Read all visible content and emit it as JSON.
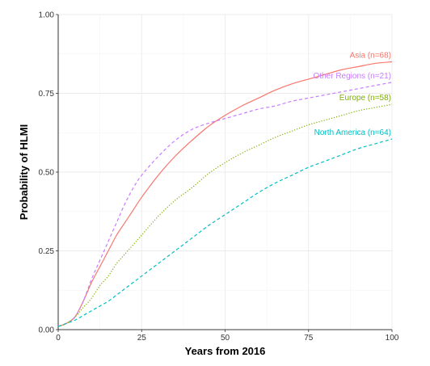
{
  "chart_data": {
    "type": "line",
    "title": "",
    "xlabel": "Years from 2016",
    "ylabel": "Probability of HLMI",
    "xlim": [
      0,
      100
    ],
    "ylim": [
      0,
      1
    ],
    "x_ticks": [
      "0",
      "25",
      "50",
      "75",
      "100"
    ],
    "y_ticks": [
      "0.00",
      "0.25",
      "0.50",
      "0.75",
      "1.00"
    ],
    "grid": true,
    "legend": "direct labels at line ends",
    "series": [
      {
        "name": "Asia (n=68)",
        "color": "#f8766d",
        "dash": "solid",
        "x": [
          0,
          2.5,
          5,
          7.5,
          10,
          12.5,
          15,
          17.5,
          20,
          22.5,
          25,
          30,
          35,
          40,
          45,
          50,
          55,
          60,
          65,
          70,
          75,
          80,
          85,
          90,
          95,
          100
        ],
        "y": [
          0.01,
          0.02,
          0.04,
          0.09,
          0.15,
          0.2,
          0.25,
          0.3,
          0.34,
          0.38,
          0.42,
          0.49,
          0.55,
          0.6,
          0.645,
          0.68,
          0.71,
          0.735,
          0.76,
          0.78,
          0.795,
          0.81,
          0.825,
          0.835,
          0.845,
          0.85
        ]
      },
      {
        "name": "Other Regions (n=21)",
        "color": "#c77cff",
        "dash": "dashed",
        "x": [
          0,
          2.5,
          5,
          7.5,
          10,
          12.5,
          15,
          17.5,
          20,
          22.5,
          25,
          30,
          35,
          40,
          45,
          50,
          55,
          60,
          65,
          70,
          75,
          80,
          85,
          90,
          95,
          100
        ],
        "y": [
          0.01,
          0.02,
          0.04,
          0.09,
          0.16,
          0.22,
          0.28,
          0.34,
          0.4,
          0.45,
          0.49,
          0.55,
          0.6,
          0.635,
          0.655,
          0.67,
          0.685,
          0.7,
          0.71,
          0.725,
          0.735,
          0.745,
          0.755,
          0.765,
          0.775,
          0.785
        ]
      },
      {
        "name": "Europe (n=58)",
        "color": "#7cae00",
        "dash": "dotted",
        "x": [
          0,
          2.5,
          5,
          7.5,
          10,
          12.5,
          15,
          17.5,
          20,
          22.5,
          25,
          30,
          35,
          40,
          45,
          50,
          55,
          60,
          65,
          70,
          75,
          80,
          85,
          90,
          95,
          100
        ],
        "y": [
          0.01,
          0.02,
          0.04,
          0.07,
          0.1,
          0.14,
          0.17,
          0.21,
          0.24,
          0.27,
          0.3,
          0.36,
          0.41,
          0.45,
          0.495,
          0.53,
          0.56,
          0.585,
          0.61,
          0.63,
          0.65,
          0.665,
          0.68,
          0.695,
          0.705,
          0.715
        ]
      },
      {
        "name": "North America (n=64)",
        "color": "#00bfc4",
        "dash": "dashed",
        "x": [
          0,
          2.5,
          5,
          7.5,
          10,
          12.5,
          15,
          17.5,
          20,
          22.5,
          25,
          30,
          35,
          40,
          45,
          50,
          55,
          60,
          65,
          70,
          75,
          80,
          85,
          90,
          95,
          100
        ],
        "y": [
          0.01,
          0.02,
          0.03,
          0.045,
          0.06,
          0.075,
          0.09,
          0.11,
          0.13,
          0.15,
          0.17,
          0.21,
          0.25,
          0.29,
          0.33,
          0.365,
          0.4,
          0.435,
          0.465,
          0.49,
          0.515,
          0.535,
          0.555,
          0.575,
          0.59,
          0.605
        ]
      }
    ]
  }
}
